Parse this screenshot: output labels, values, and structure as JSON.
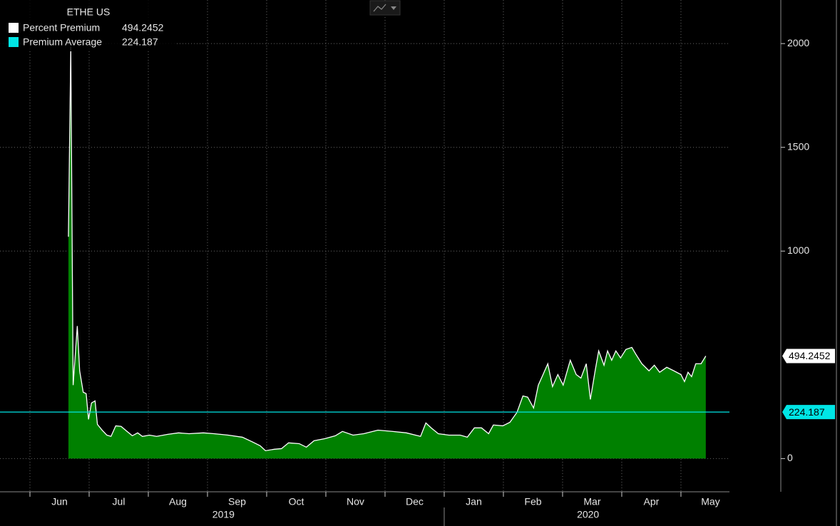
{
  "chart_data": {
    "type": "area",
    "title": "ETHE US",
    "x": [
      0.65,
      0.69,
      0.73,
      0.8,
      0.84,
      0.9,
      0.95,
      0.99,
      1.04,
      1.1,
      1.14,
      1.22,
      1.3,
      1.37,
      1.45,
      1.54,
      1.64,
      1.73,
      1.82,
      1.9,
      2.02,
      2.14,
      2.33,
      2.51,
      2.69,
      2.93,
      3.11,
      3.35,
      3.59,
      3.77,
      3.89,
      3.98,
      4.13,
      4.25,
      4.37,
      4.55,
      4.67,
      4.8,
      4.98,
      5.16,
      5.28,
      5.46,
      5.64,
      5.88,
      6.12,
      6.36,
      6.6,
      6.69,
      6.78,
      6.9,
      7.08,
      7.27,
      7.39,
      7.51,
      7.63,
      7.75,
      7.83,
      7.99,
      8.11,
      8.23,
      8.33,
      8.41,
      8.51,
      8.59,
      8.67,
      8.75,
      8.83,
      8.92,
      9.01,
      9.13,
      9.23,
      9.31,
      9.4,
      9.47,
      9.55,
      9.61,
      9.7,
      9.76,
      9.83,
      9.9,
      9.98,
      10.07,
      10.17,
      10.24,
      10.34,
      10.46,
      10.55,
      10.64,
      10.76,
      10.88,
      11.0,
      11.06,
      11.12,
      11.18,
      11.25,
      11.34,
      11.42
    ],
    "series": [
      {
        "name": "Percent Premium",
        "color": "#ffffff",
        "fill": "#008000",
        "values": [
          1069,
          1986,
          354,
          639,
          423,
          320,
          313,
          189,
          268,
          278,
          165,
          137,
          113,
          107,
          158,
          155,
          131,
          110,
          124,
          107,
          113,
          107,
          117,
          124,
          120,
          124,
          120,
          113,
          103,
          79,
          62,
          38,
          45,
          48,
          76,
          72,
          55,
          86,
          96,
          110,
          131,
          113,
          120,
          137,
          131,
          124,
          107,
          172,
          148,
          120,
          113,
          113,
          103,
          148,
          148,
          120,
          162,
          158,
          175,
          223,
          302,
          296,
          244,
          354,
          405,
          457,
          347,
          405,
          354,
          474,
          405,
          388,
          457,
          285,
          423,
          519,
          450,
          519,
          474,
          519,
          485,
          526,
          536,
          502,
          457,
          423,
          450,
          416,
          440,
          423,
          405,
          371,
          416,
          395,
          457,
          457,
          494.2452
        ]
      },
      {
        "name": "Premium Average",
        "color": "#00e5e5",
        "value": 224.187
      }
    ],
    "xlim": [
      -0.506,
      11.82
    ],
    "xticks": [
      {
        "value": 0.5,
        "label": "Jun"
      },
      {
        "value": 1.5,
        "label": "Jul"
      },
      {
        "value": 2.5,
        "label": "Aug"
      },
      {
        "value": 3.5,
        "label": "Sep"
      },
      {
        "value": 4.5,
        "label": "Oct"
      },
      {
        "value": 5.5,
        "label": "Nov"
      },
      {
        "value": 6.5,
        "label": "Dec"
      },
      {
        "value": 7.5,
        "label": "Jan"
      },
      {
        "value": 8.5,
        "label": "Feb"
      },
      {
        "value": 9.5,
        "label": "Mar"
      },
      {
        "value": 10.5,
        "label": "Apr"
      },
      {
        "value": 11.5,
        "label": "May"
      }
    ],
    "year_ticks": [
      {
        "value": 3.27,
        "label": "2019"
      },
      {
        "value": 9.43,
        "label": "2020"
      }
    ],
    "ylim": [
      -160,
      2210
    ],
    "yticks": [
      0,
      1000,
      1500,
      2000
    ],
    "grid": true
  }
}
